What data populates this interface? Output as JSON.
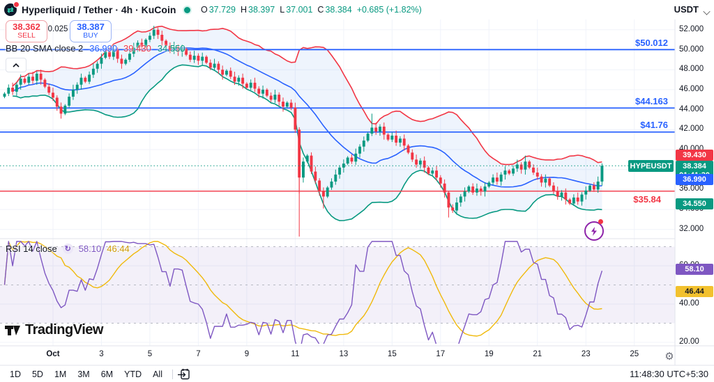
{
  "header": {
    "symbol_title": "Hyperliquid / Tether · 4h · KuCoin",
    "ohlc": [
      {
        "k": "O",
        "v": "37.729"
      },
      {
        "k": "H",
        "v": "38.397"
      },
      {
        "k": "L",
        "v": "37.001"
      },
      {
        "k": "C",
        "v": "38.384"
      }
    ],
    "change": "+0.685 (+1.82%)",
    "currency": "USDT"
  },
  "trade_panel": {
    "sell_price": "38.362",
    "sell_label": "SELL",
    "spread": "0.025",
    "buy_price": "38.387",
    "buy_label": "BUY"
  },
  "indicators": {
    "bb_label": "BB 20 SMA close 2",
    "bb_basis": "36.990",
    "bb_upper": "39.430",
    "bb_lower": "34.550",
    "rsi_label": "RSI 14 close",
    "rsi_value": "58.10",
    "rsi_ma": "46.44"
  },
  "levels": [
    {
      "label": "$50.012",
      "value": 50.012,
      "color": "#2962ff"
    },
    {
      "label": "$44.163",
      "value": 44.163,
      "color": "#2962ff"
    },
    {
      "label": "$41.76",
      "value": 41.76,
      "color": "#2962ff"
    },
    {
      "label": "$35.84",
      "value": 35.84,
      "color": "#f23645"
    }
  ],
  "price_scale": {
    "ticks": [
      "52.000",
      "50.000",
      "48.000",
      "46.000",
      "44.000",
      "42.000",
      "40.000",
      "38.000",
      "36.000",
      "34.000",
      "32.000"
    ],
    "badge_upper": "39.430",
    "badge_last": "38.384",
    "badge_countdown": "01:41:30",
    "badge_basis": "36.990",
    "badge_lower": "34.550",
    "symbol_badge": "HYPEUSDT"
  },
  "rsi_scale": {
    "ticks": [
      "60.00",
      "40.00",
      "20.00"
    ],
    "badge_value": "58.10",
    "badge_ma": "46.44"
  },
  "time_axis": {
    "labels": [
      "Oct",
      "3",
      "5",
      "7",
      "9",
      "11",
      "13",
      "15",
      "17",
      "19",
      "21",
      "23",
      "25"
    ]
  },
  "toolbar": {
    "ranges": [
      "1D",
      "5D",
      "1M",
      "3M",
      "6M",
      "YTD",
      "All"
    ],
    "clock": "11:48:30 UTC+5:30"
  },
  "watermark": "TradingView",
  "chart_data": {
    "type": "candlestick",
    "symbol": "HYPEUSDT",
    "interval": "4h",
    "title": "Hyperliquid / Tether 4h KuCoin",
    "price_axis": {
      "min": 31.0,
      "max": 52.6,
      "grid_ticks": [
        52,
        50,
        48,
        46,
        44,
        42,
        40,
        38,
        36,
        34,
        32
      ]
    },
    "rsi_axis": {
      "grid_ticks": [
        60,
        40,
        20
      ],
      "bands": [
        70,
        50,
        30
      ]
    },
    "first_open": 45.3,
    "closes": [
      45.6,
      46.2,
      45.8,
      46.5,
      47.1,
      46.7,
      47.3,
      46.9,
      47.6,
      47.0,
      46.3,
      45.7,
      45.2,
      44.3,
      43.6,
      44.4,
      45.3,
      46.0,
      46.5,
      47.2,
      46.8,
      47.5,
      48.1,
      48.6,
      49.2,
      49.8,
      49.3,
      50.0,
      49.1,
      48.6,
      49.0,
      49.6,
      50.2,
      50.7,
      50.3,
      51.0,
      51.4,
      52.0,
      51.5,
      50.9,
      50.4,
      49.9,
      50.3,
      49.8,
      50.1,
      49.5,
      49.0,
      49.4,
      48.9,
      49.3,
      48.7,
      48.2,
      48.6,
      48.0,
      47.5,
      47.9,
      47.3,
      46.8,
      47.2,
      46.6,
      46.2,
      46.7,
      46.1,
      45.6,
      46.0,
      45.4,
      45.0,
      45.5,
      44.8,
      44.3,
      44.7,
      44.2,
      42.0,
      37.2,
      38.8,
      39.4,
      37.8,
      36.9,
      35.8,
      35.3,
      36.2,
      36.8,
      37.5,
      38.2,
      38.6,
      39.2,
      38.8,
      39.6,
      40.3,
      40.9,
      41.6,
      42.2,
      41.8,
      42.3,
      41.5,
      41.0,
      41.4,
      40.7,
      41.1,
      40.4,
      39.7,
      39.0,
      38.5,
      38.9,
      38.2,
      37.6,
      37.9,
      37.2,
      36.6,
      35.7,
      34.2,
      33.9,
      34.7,
      35.3,
      35.8,
      36.3,
      35.7,
      36.1,
      35.8,
      36.3,
      36.7,
      37.2,
      36.8,
      37.5,
      37.9,
      37.6,
      38.1,
      38.5,
      38.0,
      38.8,
      38.2,
      37.7,
      37.3,
      36.7,
      37.1,
      36.4,
      35.8,
      35.3,
      35.7,
      35.0,
      34.6,
      35.2,
      34.8,
      35.5,
      35.9,
      36.4,
      36.0,
      36.8,
      38.38
    ],
    "wick_overrides": {
      "high": {
        "37": 52.4,
        "91": 43.6,
        "129": 39.4
      },
      "low": {
        "14": 43.1,
        "73": 35.6,
        "79": 34.1,
        "110": 33.2
      }
    },
    "last_price": 38.384,
    "levels": [
      50.012,
      44.163,
      41.76,
      35.84
    ],
    "vertical_line_index": 73,
    "indicators": {
      "bollinger": {
        "length": 20,
        "stdev_mult": 2,
        "current_basis": 36.99,
        "current_upper": 39.43,
        "current_lower": 34.55
      },
      "rsi": {
        "length": 14,
        "current": 58.1,
        "ma_length": 14,
        "ma_current": 46.44
      }
    },
    "colors": {
      "up": "#089981",
      "down": "#f23645",
      "bb_basis": "#2962ff",
      "bb_upper": "#f23645",
      "bb_lower": "#089981",
      "bb_fill": "rgba(42,120,226,0.08)",
      "level_blue": "#2962ff",
      "level_red": "#f23645",
      "rsi_line": "#7e57c2",
      "rsi_ma_line": "#f0b90b",
      "rsi_band_fill": "rgba(126,87,194,0.09)"
    }
  }
}
